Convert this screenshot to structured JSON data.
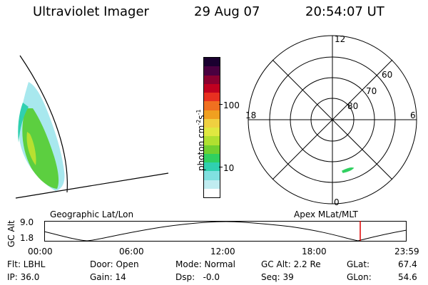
{
  "header": {
    "title": "Ultraviolet Imager",
    "date": "29 Aug 07",
    "time": "20:54:07 UT"
  },
  "colorbar": {
    "unit_label": "photon cm",
    "unit_exp1": "-2",
    "unit_mid": "s",
    "unit_exp2": "-1",
    "ticks": [
      "100",
      "10"
    ],
    "colors": [
      "#1a0030",
      "#4a0040",
      "#8a0030",
      "#c00020",
      "#e83020",
      "#f07020",
      "#f0a020",
      "#f0d040",
      "#e0e840",
      "#b0e030",
      "#70d030",
      "#30d060",
      "#30d0b0",
      "#80e0e0",
      "#c0ecf0",
      "#ffffff"
    ]
  },
  "polar": {
    "mlt_labels": {
      "top": "12",
      "left": "18",
      "right": "6",
      "bottom": "0"
    },
    "lat_labels": [
      "60",
      "70",
      "80"
    ]
  },
  "timeline": {
    "left_label": "Geographic Lat/Lon",
    "right_label": "Apex MLat/MLT",
    "axis_title": "GC Alt",
    "y_ticks": [
      "9.0",
      "1.8"
    ],
    "x_ticks": [
      "00:00",
      "06:00",
      "12:00",
      "18:00",
      "23:59"
    ],
    "current_time_marker": "20:54",
    "marker_color": "#e00000"
  },
  "info": {
    "row1": {
      "flt": "Flt: LBHL",
      "door": "Door: Open",
      "mode": "Mode: Normal",
      "gcalt": "GC Alt: 2.2 Re",
      "glat_label": "GLat:",
      "glat_value": "67.4"
    },
    "row2": {
      "ip": "IP: 36.0",
      "gain": "Gain: 14",
      "dsp": "Dsp:   -0.0",
      "seq": "Seq: 39",
      "glon_label": "GLon:",
      "glon_value": "54.6"
    }
  }
}
